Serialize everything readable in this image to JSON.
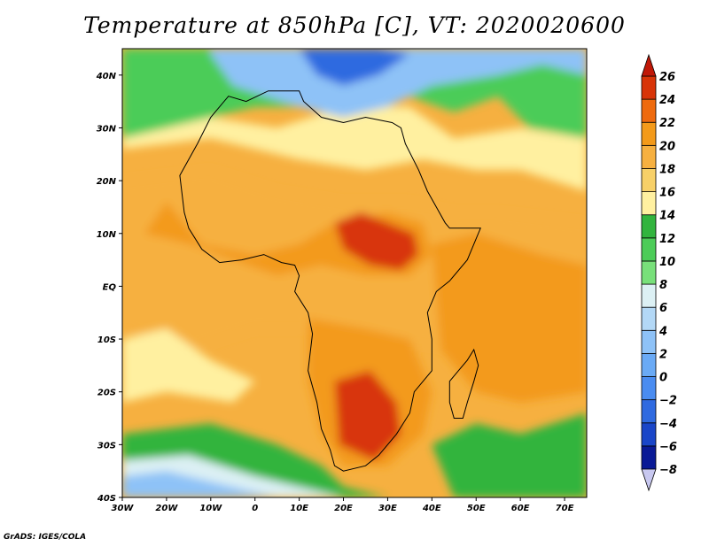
{
  "title": "Temperature at 850hPa [C], VT: 2020020600",
  "credit": "GrADS: IGES/COLA",
  "map": {
    "lon_range": [
      -30,
      75
    ],
    "lat_range": [
      -40,
      45
    ],
    "lon_ticks": [
      {
        "v": -30,
        "label": "30W"
      },
      {
        "v": -20,
        "label": "20W"
      },
      {
        "v": -10,
        "label": "10W"
      },
      {
        "v": 0,
        "label": "0"
      },
      {
        "v": 10,
        "label": "10E"
      },
      {
        "v": 20,
        "label": "20E"
      },
      {
        "v": 30,
        "label": "30E"
      },
      {
        "v": 40,
        "label": "40E"
      },
      {
        "v": 50,
        "label": "50E"
      },
      {
        "v": 60,
        "label": "60E"
      },
      {
        "v": 70,
        "label": "70E"
      }
    ],
    "lat_ticks": [
      {
        "v": 40,
        "label": "40N"
      },
      {
        "v": 30,
        "label": "30N"
      },
      {
        "v": 20,
        "label": "20N"
      },
      {
        "v": 10,
        "label": "10N"
      },
      {
        "v": 0,
        "label": "EQ"
      },
      {
        "v": -10,
        "label": "10S"
      },
      {
        "v": -20,
        "label": "20S"
      },
      {
        "v": -30,
        "label": "30S"
      },
      {
        "v": -40,
        "label": "40S"
      }
    ],
    "features": [
      {
        "name": "north-hot-west-africa",
        "temp": 19,
        "poly": [
          [
            -30,
            20
          ],
          [
            -10,
            22
          ],
          [
            5,
            18
          ],
          [
            20,
            16
          ],
          [
            35,
            16
          ],
          [
            45,
            14
          ],
          [
            55,
            14
          ],
          [
            75,
            12
          ],
          [
            75,
            -8
          ],
          [
            60,
            -10
          ],
          [
            45,
            -12
          ],
          [
            30,
            -10
          ],
          [
            15,
            -8
          ],
          [
            0,
            -8
          ],
          [
            -15,
            -12
          ],
          [
            -30,
            -8
          ]
        ]
      },
      {
        "name": "sahara-band",
        "temp": 15,
        "poly": [
          [
            -30,
            18
          ],
          [
            -30,
            26
          ],
          [
            -10,
            28
          ],
          [
            10,
            24
          ],
          [
            25,
            22
          ],
          [
            38,
            24
          ],
          [
            50,
            22
          ],
          [
            60,
            22
          ],
          [
            75,
            18
          ],
          [
            75,
            28
          ],
          [
            60,
            30
          ],
          [
            45,
            28
          ],
          [
            35,
            34
          ],
          [
            20,
            34
          ],
          [
            5,
            30
          ],
          [
            -10,
            32
          ],
          [
            -30,
            30
          ]
        ]
      },
      {
        "name": "north-green",
        "temp": 11,
        "poly": [
          [
            -30,
            28
          ],
          [
            -30,
            45
          ],
          [
            75,
            45
          ],
          [
            75,
            28
          ],
          [
            62,
            30
          ],
          [
            55,
            36
          ],
          [
            45,
            33
          ],
          [
            35,
            36
          ],
          [
            20,
            36
          ],
          [
            10,
            34
          ],
          [
            0,
            34
          ],
          [
            -10,
            32
          ],
          [
            -20,
            30
          ]
        ]
      },
      {
        "name": "mediterranean-cold",
        "temp": 3,
        "poly": [
          [
            -10,
            44
          ],
          [
            -5,
            38
          ],
          [
            10,
            34
          ],
          [
            20,
            32
          ],
          [
            30,
            34
          ],
          [
            40,
            38
          ],
          [
            55,
            40
          ],
          [
            65,
            42
          ],
          [
            75,
            40
          ],
          [
            75,
            45
          ],
          [
            -10,
            45
          ]
        ]
      },
      {
        "name": "mediterranean-core",
        "temp": -3,
        "poly": [
          [
            10,
            45
          ],
          [
            14,
            40
          ],
          [
            20,
            38
          ],
          [
            28,
            40
          ],
          [
            35,
            44
          ],
          [
            28,
            45
          ]
        ]
      },
      {
        "name": "west-africa-warm",
        "temp": 21,
        "poly": [
          [
            -18,
            14
          ],
          [
            -12,
            8
          ],
          [
            0,
            6
          ],
          [
            10,
            8
          ],
          [
            18,
            12
          ],
          [
            30,
            14
          ],
          [
            38,
            12
          ],
          [
            40,
            6
          ],
          [
            35,
            2
          ],
          [
            25,
            2
          ],
          [
            15,
            4
          ],
          [
            5,
            2
          ],
          [
            -5,
            5
          ],
          [
            -15,
            8
          ],
          [
            -25,
            10
          ],
          [
            -20,
            16
          ]
        ]
      },
      {
        "name": "central-africa-hot",
        "temp": 24,
        "poly": [
          [
            18,
            12
          ],
          [
            24,
            14
          ],
          [
            30,
            12
          ],
          [
            36,
            10
          ],
          [
            37,
            6
          ],
          [
            33,
            3
          ],
          [
            26,
            4
          ],
          [
            20,
            7
          ]
        ]
      },
      {
        "name": "east-ocean-warm",
        "temp": 20,
        "poly": [
          [
            40,
            8
          ],
          [
            50,
            10
          ],
          [
            65,
            6
          ],
          [
            75,
            4
          ],
          [
            75,
            -20
          ],
          [
            60,
            -22
          ],
          [
            50,
            -20
          ],
          [
            42,
            -12
          ]
        ]
      },
      {
        "name": "southern-africa-warm",
        "temp": 20,
        "poly": [
          [
            12,
            -6
          ],
          [
            25,
            -8
          ],
          [
            35,
            -10
          ],
          [
            40,
            -20
          ],
          [
            38,
            -28
          ],
          [
            30,
            -34
          ],
          [
            20,
            -34
          ],
          [
            15,
            -28
          ],
          [
            12,
            -18
          ]
        ]
      },
      {
        "name": "southern-africa-hot",
        "temp": 24,
        "poly": [
          [
            18,
            -18
          ],
          [
            26,
            -16
          ],
          [
            32,
            -22
          ],
          [
            33,
            -28
          ],
          [
            27,
            -33
          ],
          [
            19,
            -30
          ]
        ]
      },
      {
        "name": "atlantic-south-cool",
        "temp": 13,
        "poly": [
          [
            -30,
            -28
          ],
          [
            -10,
            -26
          ],
          [
            5,
            -30
          ],
          [
            15,
            -34
          ],
          [
            20,
            -38
          ],
          [
            30,
            -40
          ],
          [
            -30,
            -40
          ]
        ]
      },
      {
        "name": "atlantic-south-cold",
        "temp": 7,
        "poly": [
          [
            -30,
            -33
          ],
          [
            -15,
            -32
          ],
          [
            0,
            -36
          ],
          [
            10,
            -38
          ],
          [
            20,
            -40
          ],
          [
            -30,
            -40
          ]
        ]
      },
      {
        "name": "atlantic-southwest-colder",
        "temp": 3,
        "poly": [
          [
            -30,
            -36
          ],
          [
            -20,
            -35
          ],
          [
            -5,
            -38
          ],
          [
            5,
            -40
          ],
          [
            -30,
            -40
          ]
        ]
      },
      {
        "name": "indian-south-cool",
        "temp": 12,
        "poly": [
          [
            40,
            -30
          ],
          [
            50,
            -26
          ],
          [
            60,
            -28
          ],
          [
            75,
            -24
          ],
          [
            75,
            -40
          ],
          [
            45,
            -40
          ]
        ]
      },
      {
        "name": "atlantic-west-cool",
        "temp": 15,
        "poly": [
          [
            -30,
            -10
          ],
          [
            -20,
            -8
          ],
          [
            -10,
            -14
          ],
          [
            0,
            -18
          ],
          [
            -5,
            -22
          ],
          [
            -20,
            -20
          ],
          [
            -30,
            -22
          ]
        ]
      }
    ],
    "coast": [
      [
        -17,
        21
      ],
      [
        -16,
        14
      ],
      [
        -15,
        11
      ],
      [
        -12,
        7
      ],
      [
        -8,
        4.5
      ],
      [
        -3,
        5
      ],
      [
        2,
        6
      ],
      [
        6,
        4.5
      ],
      [
        9,
        4
      ],
      [
        10,
        2
      ],
      [
        9,
        -1
      ],
      [
        12,
        -5
      ],
      [
        13,
        -9
      ],
      [
        12,
        -16
      ],
      [
        14,
        -22
      ],
      [
        15,
        -27
      ],
      [
        17,
        -31
      ],
      [
        18,
        -34
      ],
      [
        20,
        -35
      ],
      [
        25,
        -34
      ],
      [
        28,
        -32
      ],
      [
        32,
        -28
      ],
      [
        35,
        -24
      ],
      [
        36,
        -20
      ],
      [
        40,
        -16
      ],
      [
        40,
        -10
      ],
      [
        39,
        -5
      ],
      [
        41,
        -1
      ],
      [
        44,
        1
      ],
      [
        48,
        5
      ],
      [
        51,
        11
      ],
      [
        44,
        11
      ],
      [
        43,
        12
      ],
      [
        41,
        15
      ],
      [
        39,
        18
      ],
      [
        37,
        22
      ],
      [
        34,
        27
      ],
      [
        33,
        30
      ],
      [
        31,
        31
      ],
      [
        25,
        32
      ],
      [
        20,
        31
      ],
      [
        15,
        32
      ],
      [
        11,
        35
      ],
      [
        10,
        37
      ],
      [
        3,
        37
      ],
      [
        -2,
        35
      ],
      [
        -6,
        36
      ],
      [
        -10,
        32
      ],
      [
        -13,
        27
      ],
      [
        -17,
        21
      ]
    ],
    "madagascar": [
      [
        49.5,
        -12
      ],
      [
        50.5,
        -15
      ],
      [
        49.5,
        -18
      ],
      [
        48,
        -22
      ],
      [
        47,
        -25
      ],
      [
        45,
        -25
      ],
      [
        44,
        -22
      ],
      [
        44,
        -18
      ],
      [
        46,
        -16
      ],
      [
        48,
        -14
      ]
    ],
    "colorbar": {
      "levels": [
        -8,
        -6,
        -4,
        -2,
        0,
        2,
        4,
        6,
        8,
        10,
        12,
        14,
        16,
        18,
        20,
        22,
        24,
        26
      ],
      "colors": [
        "#0a1a96",
        "#1a46c8",
        "#2f6ae0",
        "#4a8cf0",
        "#6aaaf5",
        "#8ec2f7",
        "#b3d8f6",
        "#dcf0f4",
        "#78e07a",
        "#4ccc58",
        "#32b43e",
        "#fff0a0",
        "#f7d068",
        "#f6b040",
        "#f39a1a",
        "#ee6a0e",
        "#d83408"
      ],
      "under_color": "#c8c8f0",
      "over_color": "#c01808"
    }
  }
}
